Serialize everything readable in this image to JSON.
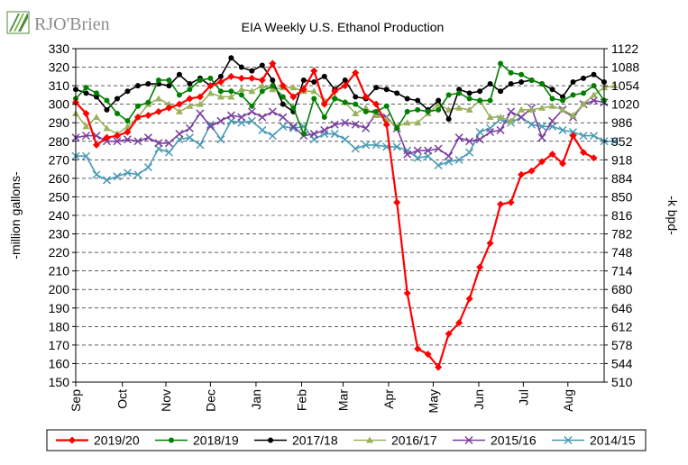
{
  "brand": {
    "name": "RJO'Brien"
  },
  "colors": {
    "brand_green": "#4f8a3a",
    "brand_text": "#8c8c8c"
  },
  "chart_data": {
    "type": "line",
    "title": "EIA Weekly U.S. Ethanol Production",
    "ylabel": "-million gallons-",
    "y2label": "-k bpd-",
    "ylim": [
      150,
      330
    ],
    "y2lim": [
      510,
      1122
    ],
    "yticks": [
      150,
      160,
      170,
      180,
      190,
      200,
      210,
      220,
      230,
      240,
      250,
      260,
      270,
      280,
      290,
      300,
      310,
      320,
      330
    ],
    "y2ticks": [
      510,
      544,
      578,
      612,
      646,
      680,
      714,
      748,
      782,
      816,
      850,
      884,
      918,
      952,
      986,
      1020,
      1054,
      1088,
      1122
    ],
    "months": [
      "Sep",
      "Oct",
      "Nov",
      "Dec",
      "Jan",
      "Feb",
      "Mar",
      "Apr",
      "May",
      "Jun",
      "Jul",
      "Aug"
    ],
    "x_unit": "week",
    "xlim": [
      0,
      51
    ],
    "month_week": [
      0,
      4.5,
      8.7,
      13,
      17.4,
      21.8,
      25.8,
      30.2,
      34.5,
      38.9,
      43.2,
      47.5
    ],
    "grid": "horizontal dashed",
    "legend_position": "bottom",
    "series": [
      {
        "name": "2019/20",
        "color": "#ff0000",
        "marker": "diamond",
        "values": [
          301,
          295,
          278,
          282,
          283,
          285,
          293,
          294,
          296,
          298,
          300,
          303,
          304,
          310,
          312,
          315,
          314,
          314,
          313,
          322,
          310,
          304,
          308,
          318,
          300,
          307,
          310,
          317,
          304,
          300,
          289,
          247,
          198,
          168,
          165,
          158,
          176,
          182,
          195,
          212,
          225,
          246,
          247,
          262,
          264,
          269,
          273,
          268,
          283,
          274,
          271
        ]
      },
      {
        "name": "2018/19",
        "color": "#008000",
        "marker": "circle",
        "values": [
          303,
          309,
          306,
          302,
          295,
          291,
          299,
          301,
          313,
          313,
          305,
          308,
          313,
          314,
          307,
          307,
          305,
          299,
          307,
          310,
          304,
          298,
          284,
          303,
          293,
          303,
          301,
          300,
          296,
          296,
          299,
          287,
          296,
          297,
          296,
          297,
          305,
          306,
          303,
          302,
          302,
          322,
          317,
          316,
          313,
          311,
          303,
          302,
          305,
          306,
          310,
          302
        ]
      },
      {
        "name": "2017/18",
        "color": "#000000",
        "marker": "circle",
        "values": [
          308,
          306,
          304,
          297,
          303,
          307,
          310,
          311,
          311,
          310,
          316,
          311,
          314,
          310,
          315,
          325,
          320,
          318,
          321,
          313,
          300,
          296,
          313,
          312,
          315,
          308,
          313,
          304,
          303,
          309,
          308,
          306,
          303,
          302,
          297,
          302,
          292,
          308,
          306,
          307,
          311,
          307,
          311,
          312,
          313,
          311,
          308,
          304,
          312,
          314,
          316,
          312
        ]
      },
      {
        "name": "2016/17",
        "color": "#9ab25c",
        "marker": "triangle",
        "values": [
          295,
          288,
          293,
          287,
          284,
          288,
          293,
          300,
          303,
          300,
          296,
          299,
          300,
          306,
          304,
          304,
          308,
          307,
          310,
          308,
          309,
          309,
          307,
          307,
          302,
          304,
          301,
          295,
          298,
          294,
          292,
          288,
          290,
          290,
          295,
          300,
          297,
          298,
          297,
          302,
          293,
          293,
          291,
          297,
          297,
          298,
          299,
          297,
          294,
          300,
          305,
          309,
          310
        ]
      },
      {
        "name": "2015/16",
        "color": "#7b3fa0",
        "marker": "x",
        "values": [
          282,
          283,
          283,
          280,
          280,
          281,
          280,
          282,
          279,
          279,
          284,
          287,
          295,
          288,
          291,
          294,
          293,
          296,
          293,
          296,
          293,
          288,
          283,
          284,
          286,
          289,
          290,
          289,
          287,
          295,
          293,
          287,
          273,
          275,
          275,
          276,
          272,
          282,
          280,
          281,
          285,
          286,
          296,
          293,
          298,
          282,
          291,
          297,
          293,
          300,
          302,
          301
        ]
      },
      {
        "name": "2014/15",
        "color": "#4a9bb5",
        "marker": "x",
        "values": [
          272,
          272,
          262,
          259,
          261,
          263,
          262,
          266,
          276,
          274,
          281,
          282,
          278,
          289,
          281,
          291,
          290,
          291,
          286,
          283,
          288,
          287,
          288,
          281,
          284,
          284,
          281,
          276,
          278,
          278,
          277,
          277,
          275,
          271,
          272,
          267,
          269,
          270,
          274,
          285,
          287,
          292,
          290,
          293,
          289,
          288,
          288,
          286,
          285,
          283,
          283,
          280,
          280
        ]
      }
    ]
  }
}
